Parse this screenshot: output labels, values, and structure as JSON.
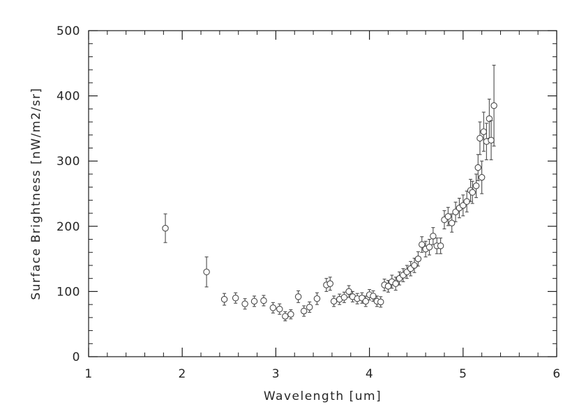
{
  "figure": {
    "background": "#ffffff"
  },
  "chart_data": {
    "type": "scatter",
    "title": "",
    "xlabel": "Wavelength [um]",
    "ylabel": "Surface Brightness [nW/m2/sr]",
    "xlim": [
      1,
      6
    ],
    "ylim": [
      0,
      500
    ],
    "x_major_ticks": [
      1,
      2,
      3,
      4,
      5,
      6
    ],
    "y_major_ticks": [
      0,
      100,
      200,
      300,
      400,
      500
    ],
    "x_minor_step": 0.2,
    "y_minor_step": 20,
    "grid": false,
    "legend": null,
    "marker": "open-circle",
    "error_bars": true,
    "axis_color": "#1c1c1c",
    "data_color": "#4a4a4a",
    "series": [
      {
        "name": "surface-brightness",
        "points": [
          [
            1.82,
            197,
            22
          ],
          [
            2.26,
            130,
            23
          ],
          [
            2.45,
            88,
            9
          ],
          [
            2.57,
            90,
            8
          ],
          [
            2.67,
            81,
            8
          ],
          [
            2.77,
            85,
            8
          ],
          [
            2.87,
            86,
            8
          ],
          [
            2.97,
            75,
            8
          ],
          [
            3.04,
            73,
            8
          ],
          [
            3.1,
            62,
            7
          ],
          [
            3.16,
            65,
            7
          ],
          [
            3.24,
            92,
            9
          ],
          [
            3.3,
            70,
            8
          ],
          [
            3.36,
            76,
            8
          ],
          [
            3.44,
            89,
            9
          ],
          [
            3.54,
            110,
            10
          ],
          [
            3.58,
            112,
            10
          ],
          [
            3.62,
            85,
            8
          ],
          [
            3.68,
            88,
            8
          ],
          [
            3.73,
            91,
            8
          ],
          [
            3.78,
            100,
            9
          ],
          [
            3.82,
            92,
            8
          ],
          [
            3.87,
            89,
            8
          ],
          [
            3.92,
            90,
            8
          ],
          [
            3.96,
            85,
            8
          ],
          [
            4.0,
            95,
            8
          ],
          [
            4.04,
            93,
            8
          ],
          [
            4.08,
            85,
            8
          ],
          [
            4.12,
            84,
            8
          ],
          [
            4.16,
            110,
            9
          ],
          [
            4.2,
            108,
            9
          ],
          [
            4.24,
            115,
            10
          ],
          [
            4.28,
            112,
            10
          ],
          [
            4.32,
            120,
            10
          ],
          [
            4.36,
            125,
            10
          ],
          [
            4.4,
            130,
            10
          ],
          [
            4.44,
            135,
            11
          ],
          [
            4.48,
            140,
            11
          ],
          [
            4.52,
            150,
            11
          ],
          [
            4.56,
            172,
            12
          ],
          [
            4.6,
            165,
            12
          ],
          [
            4.64,
            168,
            12
          ],
          [
            4.68,
            185,
            13
          ],
          [
            4.72,
            170,
            12
          ],
          [
            4.76,
            170,
            12
          ],
          [
            4.8,
            210,
            14
          ],
          [
            4.84,
            215,
            14
          ],
          [
            4.88,
            205,
            14
          ],
          [
            4.92,
            222,
            15
          ],
          [
            4.96,
            228,
            15
          ],
          [
            5.0,
            232,
            16
          ],
          [
            5.04,
            238,
            16
          ],
          [
            5.08,
            255,
            17
          ],
          [
            5.1,
            252,
            17
          ],
          [
            5.14,
            262,
            18
          ],
          [
            5.16,
            290,
            20
          ],
          [
            5.18,
            335,
            25
          ],
          [
            5.2,
            275,
            25
          ],
          [
            5.22,
            345,
            30
          ],
          [
            5.25,
            330,
            28
          ],
          [
            5.28,
            365,
            30
          ],
          [
            5.3,
            332,
            30
          ],
          [
            5.33,
            385,
            62
          ]
        ]
      }
    ]
  }
}
